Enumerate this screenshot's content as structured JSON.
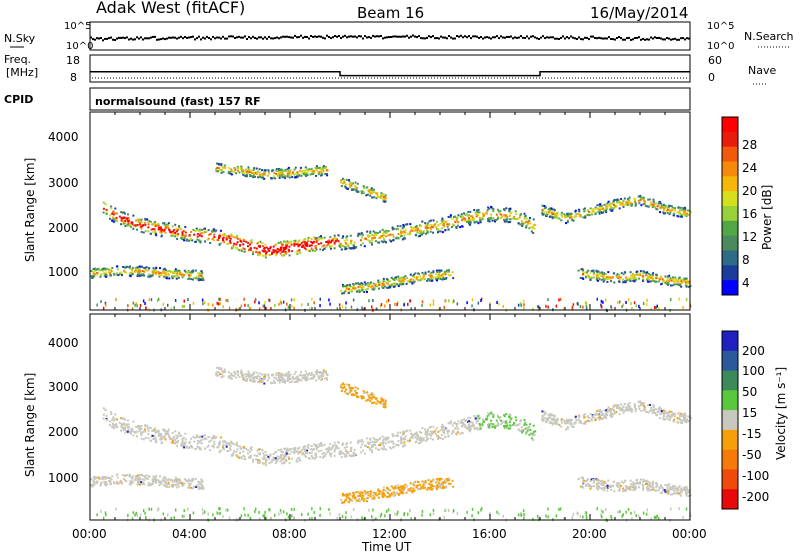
{
  "header": {
    "radar": "Adak West (fitACF)",
    "beam": "Beam 16",
    "date": "16/May/2014"
  },
  "sky_panel": {
    "left_label": "N.Sky",
    "right_label": "N.Search",
    "left_ticks": [
      "10^5",
      "10^0"
    ],
    "right_ticks": [
      "10^5",
      "10^0"
    ]
  },
  "freq_panel": {
    "left_label_1": "Freq.",
    "left_label_2": "[MHz]",
    "right_label": "Nave",
    "left_ticks": [
      "18",
      "8"
    ],
    "right_ticks": [
      "60",
      "0"
    ],
    "freq_steps": [
      {
        "x": 0,
        "y": 11.6
      },
      {
        "x": 10.0,
        "y": 11.6
      },
      {
        "x": 10.0,
        "y": 10.1
      },
      {
        "x": 18.0,
        "y": 10.1
      },
      {
        "x": 18.0,
        "y": 11.6
      },
      {
        "x": 24.0,
        "y": 11.6
      }
    ],
    "nave_level": 9
  },
  "cpid": {
    "label": "CPID",
    "text": "normalsound (fast) 157 RF"
  },
  "x_axis": {
    "label": "Time UT",
    "ticks": [
      "00:00",
      "04:00",
      "08:00",
      "12:00",
      "16:00",
      "20:00",
      "00:00"
    ],
    "range_hours": [
      0,
      24
    ]
  },
  "power_panel": {
    "ylabel": "Slant Range [km]",
    "yticks": [
      "4000",
      "3000",
      "2000",
      "1000"
    ],
    "ylim": [
      180,
      4500
    ],
    "colorbar_label": "Power [dB]",
    "colorbar_ticks": [
      "28",
      "24",
      "20",
      "16",
      "12",
      "8",
      "4"
    ],
    "colors": [
      "#0000ff",
      "#1c3c9c",
      "#2e6b86",
      "#4a8a5c",
      "#4fa845",
      "#9ad03a",
      "#d4e01c",
      "#f5b80a",
      "#f58a0a",
      "#f05a0a",
      "#e81c0a",
      "#ff0000"
    ]
  },
  "velocity_panel": {
    "ylabel": "Slant Range [km]",
    "yticks": [
      "4000",
      "3000",
      "2000",
      "1000"
    ],
    "ylim": [
      180,
      4500
    ],
    "colorbar_label": "Velocity [m s⁻¹]",
    "colorbar_ticks": [
      "200",
      "100",
      "50",
      "15",
      "-15",
      "-50",
      "-100",
      "-200"
    ],
    "colors": [
      "#2020c0",
      "#2a5a9a",
      "#3c8a5a",
      "#5ac83c",
      "#c8c8be",
      "#f5a00a",
      "#f57a0a",
      "#f04a0a",
      "#e80a0a"
    ]
  },
  "chart_data": {
    "type": "heatmap",
    "title": "Adak West (fitACF) Beam 16 16/May/2014",
    "xlabel": "Time UT",
    "ylabel": "Slant Range [km]",
    "xlim": [
      0,
      24
    ],
    "ylim": [
      180,
      4500
    ],
    "bands": [
      {
        "name": "main",
        "x": [
          0.5,
          1,
          2,
          3,
          4,
          5,
          6,
          7,
          8,
          9,
          10
        ],
        "range": [
          2450,
          2250,
          2050,
          1950,
          1850,
          1800,
          1650,
          1500,
          1550,
          1650,
          1700
        ]
      },
      {
        "name": "main-pm",
        "x": [
          10,
          11,
          12,
          13,
          14,
          15,
          16,
          17,
          17.8
        ],
        "range": [
          1650,
          1750,
          1850,
          1950,
          2050,
          2200,
          2300,
          2250,
          2000
        ]
      },
      {
        "name": "evening",
        "x": [
          18,
          19,
          20,
          21,
          22,
          23,
          24
        ],
        "range": [
          2400,
          2200,
          2350,
          2500,
          2600,
          2400,
          2300
        ]
      },
      {
        "name": "near-am",
        "x": [
          0,
          1,
          2,
          3,
          4.5
        ],
        "range": [
          1000,
          1050,
          1050,
          1000,
          950
        ]
      },
      {
        "name": "near-pm",
        "x": [
          19.5,
          21,
          22,
          23,
          24
        ],
        "range": [
          1000,
          900,
          950,
          850,
          800
        ]
      },
      {
        "name": "far",
        "x": [
          5,
          6,
          7,
          8,
          9.5
        ],
        "range": [
          3300,
          3250,
          3150,
          3200,
          3250
        ]
      },
      {
        "name": "lower-pm",
        "x": [
          10,
          11,
          12,
          13,
          14.5
        ],
        "range": [
          650,
          700,
          800,
          900,
          1000
        ]
      },
      {
        "name": "morning-far",
        "x": [
          10,
          10.8,
          11.8
        ],
        "range": [
          3000,
          2850,
          2650
        ]
      }
    ],
    "gap_hours": [
      10.0,
      18.0
    ]
  }
}
